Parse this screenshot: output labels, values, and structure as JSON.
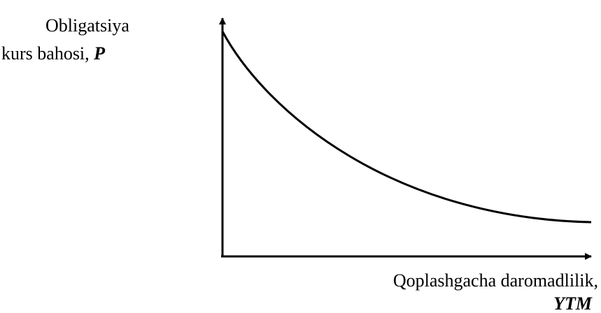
{
  "y_axis": {
    "label_lines": [
      "Obligatsiya",
      "kurs bahosi,"
    ],
    "symbol": "P"
  },
  "x_axis": {
    "label": "Qoplashgacha daromadlilik,",
    "symbol": "YTM"
  }
}
